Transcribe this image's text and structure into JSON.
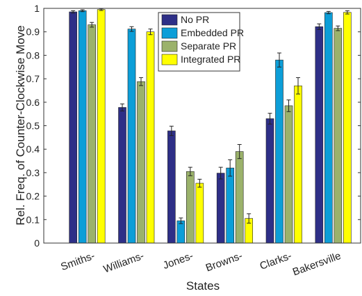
{
  "chart_data": {
    "type": "bar",
    "x_label": "States",
    "y_label": "Rel. Freq. of Counter-Clockwise Move",
    "categories": [
      "Smiths-",
      "Williams-",
      "Jones-",
      "Browns-",
      "Clarks-",
      "Bakersville"
    ],
    "series": [
      {
        "name": "No PR",
        "color": "#2e2f87",
        "values": [
          0.985,
          0.578,
          0.478,
          0.298,
          0.53,
          0.922
        ],
        "errors": [
          0.005,
          0.015,
          0.02,
          0.025,
          0.023,
          0.012
        ]
      },
      {
        "name": "Embedded PR",
        "color": "#0c9ed8",
        "values": [
          0.99,
          0.912,
          0.095,
          0.32,
          0.78,
          0.982
        ],
        "errors": [
          0.004,
          0.01,
          0.012,
          0.035,
          0.03,
          0.005
        ]
      },
      {
        "name": "Separate PR",
        "color": "#9bb26b",
        "values": [
          0.93,
          0.688,
          0.305,
          0.39,
          0.585,
          0.915
        ],
        "errors": [
          0.01,
          0.017,
          0.018,
          0.03,
          0.025,
          0.01
        ]
      },
      {
        "name": "Integrated PR",
        "color": "#ffff00",
        "values": [
          0.995,
          0.9,
          0.255,
          0.105,
          0.67,
          0.983
        ],
        "errors": [
          0.004,
          0.012,
          0.017,
          0.02,
          0.035,
          0.007
        ]
      }
    ],
    "ylim": [
      0,
      1
    ],
    "yticks": [
      0,
      0.1,
      0.2,
      0.3,
      0.4,
      0.5,
      0.6,
      0.7,
      0.8,
      0.9,
      1
    ],
    "legend": "top"
  }
}
